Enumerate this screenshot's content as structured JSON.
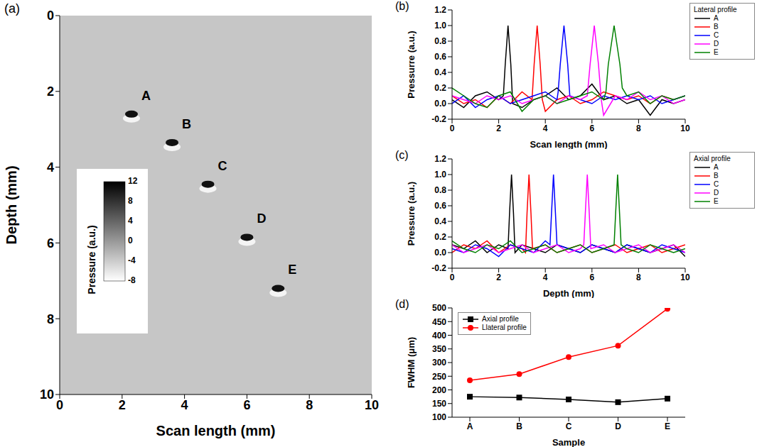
{
  "chart_data": [
    {
      "panel_label": "(a)",
      "type": "scatter",
      "xlabel": "Scan length (mm)",
      "ylabel": "Depth (mm)",
      "xlim": [
        0,
        10
      ],
      "ylim": [
        0,
        10
      ],
      "xticks": [
        0,
        2,
        4,
        6,
        8,
        10
      ],
      "yticks": [
        0,
        2,
        4,
        6,
        8,
        10
      ],
      "grid": false,
      "points": [
        {
          "label": "A",
          "x": 2.3,
          "y": 2.6
        },
        {
          "label": "B",
          "x": 3.6,
          "y": 3.35
        },
        {
          "label": "C",
          "x": 4.75,
          "y": 4.45
        },
        {
          "label": "D",
          "x": 6.0,
          "y": 5.85
        },
        {
          "label": "E",
          "x": 7.0,
          "y": 7.2
        }
      ],
      "colorbar": {
        "label": "Pressure (a.u.)",
        "range": [
          -8,
          12
        ],
        "ticks": [
          12,
          8,
          4,
          0,
          -4,
          -8
        ]
      }
    },
    {
      "panel_label": "(b)",
      "type": "line",
      "xlabel": "Scan length (mm)",
      "ylabel": "Pressurre (a.u.)",
      "legend_title": "Lateral profile",
      "legend": "right",
      "xlim": [
        0,
        10
      ],
      "ylim": [
        -0.2,
        1.2
      ],
      "xticks": [
        0,
        2,
        4,
        6,
        8,
        10
      ],
      "yticks": [
        -0.2,
        {
          "value": 0,
          "label": "0.0"
        },
        0.2,
        0.4,
        0.6,
        0.8,
        {
          "value": 1,
          "label": "1.0"
        },
        1.2
      ],
      "grid": false,
      "series": [
        {
          "name": "A",
          "color": "#000000",
          "x": [
            0,
            0.5,
            1,
            1.5,
            2,
            2.2,
            2.28,
            2.4,
            2.52,
            2.6,
            3,
            3.5,
            4,
            4.5,
            5,
            5.5,
            6,
            6.5,
            7,
            7.5,
            8,
            8.5,
            9,
            9.5,
            10
          ],
          "values": [
            0.05,
            -0.05,
            0.1,
            0.15,
            0.05,
            0.1,
            0.5,
            1.0,
            0.5,
            0.0,
            -0.05,
            0.05,
            0.1,
            0.2,
            0.05,
            0.1,
            0.25,
            0.05,
            0.1,
            0.0,
            0.05,
            -0.15,
            0.05,
            0.0,
            0.05
          ]
        },
        {
          "name": "B",
          "color": "#ff0000",
          "x": [
            0,
            0.5,
            1,
            1.5,
            2,
            2.5,
            3,
            3.43,
            3.52,
            3.65,
            3.78,
            3.87,
            4,
            4.5,
            5,
            5.5,
            6,
            6.5,
            7,
            7.5,
            8,
            8.5,
            9,
            9.5,
            10
          ],
          "values": [
            0.1,
            0.0,
            0.05,
            -0.05,
            0.1,
            0.0,
            0.15,
            0.05,
            0.5,
            1.0,
            0.5,
            0.05,
            -0.1,
            0.05,
            0.1,
            0.0,
            0.05,
            0.15,
            0.1,
            0.05,
            0.1,
            0.0,
            0.1,
            0.05,
            0.1
          ]
        },
        {
          "name": "C",
          "color": "#0000ff",
          "x": [
            0,
            0.5,
            1,
            1.5,
            2,
            2.5,
            3,
            3.5,
            4,
            4.5,
            4.55,
            4.64,
            4.8,
            4.96,
            5.05,
            5.5,
            6,
            6.5,
            7,
            7.5,
            8,
            8.5,
            9,
            9.5,
            10
          ],
          "values": [
            0.0,
            0.1,
            -0.05,
            0.05,
            0.1,
            0.0,
            0.05,
            0.1,
            0.15,
            0.05,
            0.15,
            0.5,
            1.0,
            0.5,
            0.1,
            0.05,
            0.0,
            0.1,
            0.05,
            0.1,
            0.05,
            0.1,
            0.0,
            0.05,
            0.1
          ]
        },
        {
          "name": "D",
          "color": "#ff00ff",
          "x": [
            0,
            0.5,
            1,
            1.5,
            2,
            2.5,
            3,
            3.5,
            4,
            4.5,
            5,
            5.5,
            5.8,
            5.92,
            6.1,
            6.28,
            6.4,
            6.5,
            7,
            7.5,
            8,
            8.5,
            9,
            9.5,
            10
          ],
          "values": [
            0.1,
            0.05,
            0.0,
            0.1,
            0.05,
            0.1,
            0.0,
            0.05,
            0.1,
            0.0,
            0.1,
            0.05,
            0.1,
            0.5,
            1.0,
            0.5,
            0.05,
            -0.15,
            0.1,
            0.05,
            0.15,
            0.05,
            0.1,
            0.0,
            0.05
          ]
        },
        {
          "name": "E",
          "color": "#008000",
          "x": [
            0,
            0.5,
            1,
            1.5,
            2,
            2.5,
            3,
            3.5,
            4,
            4.5,
            5,
            5.5,
            6,
            6.5,
            6.6,
            6.7,
            6.95,
            7.2,
            7.3,
            7.5,
            8,
            8.5,
            9,
            9.5,
            10
          ],
          "values": [
            0.2,
            0.1,
            0.0,
            -0.05,
            0.1,
            0.15,
            -0.1,
            0.05,
            0.1,
            0.0,
            0.05,
            0.1,
            0.15,
            0.05,
            0.15,
            0.5,
            1.0,
            0.5,
            0.2,
            0.1,
            0.15,
            0.0,
            0.1,
            0.05,
            0.1
          ]
        }
      ]
    },
    {
      "panel_label": "(c)",
      "type": "line",
      "xlabel": "Depth (mm)",
      "ylabel": "Pressure (a.u.)",
      "legend_title": "Axial profile",
      "legend": "right",
      "xlim": [
        0,
        10
      ],
      "ylim": [
        -0.2,
        1.2
      ],
      "xticks": [
        0,
        2,
        4,
        6,
        8,
        10
      ],
      "yticks": [
        -0.2,
        {
          "value": 0,
          "label": "0.0"
        },
        0.2,
        0.4,
        0.6,
        0.8,
        {
          "value": 1,
          "label": "1.0"
        },
        1.2
      ],
      "grid": false,
      "series": [
        {
          "name": "A",
          "color": "#000000",
          "x": [
            0,
            0.5,
            1,
            1.5,
            2,
            2.4,
            2.465,
            2.55,
            2.635,
            2.7,
            3,
            3.5,
            4,
            4.5,
            5,
            5.5,
            6,
            6.5,
            7,
            7.5,
            8,
            8.5,
            9,
            9.5,
            10
          ],
          "values": [
            0.1,
            0.05,
            0.15,
            0.0,
            0.1,
            0.05,
            0.5,
            1.0,
            0.5,
            0.0,
            0.1,
            0.05,
            0.0,
            0.1,
            0.05,
            0.0,
            0.1,
            0.05,
            0.0,
            0.1,
            0.05,
            0.0,
            0.05,
            0.1,
            -0.05
          ]
        },
        {
          "name": "B",
          "color": "#ff0000",
          "x": [
            0,
            0.5,
            1,
            1.5,
            2,
            2.5,
            3,
            3.15,
            3.215,
            3.3,
            3.385,
            3.45,
            4,
            4.5,
            5,
            5.5,
            6,
            6.5,
            7,
            7.5,
            8,
            8.5,
            9,
            9.5,
            10
          ],
          "values": [
            0.0,
            0.1,
            0.05,
            0.15,
            0.0,
            0.1,
            0.05,
            0.0,
            0.5,
            1.0,
            0.5,
            0.05,
            0.1,
            0.0,
            0.05,
            0.1,
            0.0,
            0.05,
            0.1,
            0.0,
            0.05,
            0.1,
            0.0,
            0.05,
            0.1
          ]
        },
        {
          "name": "C",
          "color": "#0000ff",
          "x": [
            0,
            0.5,
            1,
            1.5,
            2,
            2.5,
            3,
            3.5,
            4,
            4.2,
            4.265,
            4.35,
            4.435,
            4.5,
            5,
            5.5,
            6,
            6.5,
            7,
            7.5,
            8,
            8.5,
            9,
            9.5,
            10
          ],
          "values": [
            0.05,
            0.0,
            0.1,
            0.05,
            -0.05,
            0.1,
            0.05,
            0.0,
            0.15,
            0.1,
            0.5,
            1.0,
            0.5,
            0.1,
            0.05,
            0.0,
            0.1,
            0.05,
            0.0,
            0.1,
            0.05,
            0.0,
            0.1,
            0.05,
            0.0
          ]
        },
        {
          "name": "D",
          "color": "#ff00ff",
          "x": [
            0,
            0.5,
            1,
            1.5,
            2,
            2.5,
            3,
            3.5,
            4,
            4.5,
            5,
            5.5,
            5.65,
            5.715,
            5.8,
            5.885,
            5.95,
            6.5,
            7,
            7.5,
            8,
            8.5,
            9,
            9.5,
            10
          ],
          "values": [
            0.1,
            0.0,
            0.05,
            0.1,
            0.0,
            0.05,
            0.1,
            0.0,
            0.05,
            0.1,
            0.0,
            0.05,
            0.1,
            0.5,
            1.0,
            0.5,
            0.05,
            0.1,
            0.0,
            0.05,
            0.1,
            0.0,
            0.05,
            0.1,
            0.0
          ]
        },
        {
          "name": "E",
          "color": "#008000",
          "x": [
            0,
            0.5,
            1,
            1.5,
            2,
            2.5,
            3,
            3.5,
            4,
            4.5,
            5,
            5.5,
            6,
            6.5,
            6.95,
            7.015,
            7.1,
            7.185,
            7.25,
            7.5,
            8,
            8.5,
            9,
            9.5,
            10
          ],
          "values": [
            0.15,
            0.05,
            0.0,
            0.1,
            0.05,
            0.15,
            0.0,
            0.05,
            0.1,
            0.0,
            0.05,
            0.1,
            0.0,
            0.05,
            0.1,
            0.5,
            1.0,
            0.5,
            0.1,
            0.05,
            0.0,
            0.1,
            0.05,
            0.0,
            0.05
          ]
        }
      ]
    },
    {
      "panel_label": "(d)",
      "type": "line",
      "xlabel": "Sample",
      "ylabel": "FWHM (μm)",
      "legend": "upper left",
      "categories": [
        "A",
        "B",
        "C",
        "D",
        "E"
      ],
      "ylim": [
        100,
        500
      ],
      "yticks": [
        100,
        150,
        200,
        250,
        300,
        350,
        400,
        450,
        500
      ],
      "grid": false,
      "series": [
        {
          "name": "Axial profile",
          "color": "#000000",
          "marker": "square",
          "values": [
            175,
            172,
            165,
            155,
            168
          ]
        },
        {
          "name": "Llateral profile",
          "color": "#ff0000",
          "marker": "circle",
          "values": [
            235,
            258,
            320,
            362,
            497
          ]
        }
      ]
    }
  ]
}
